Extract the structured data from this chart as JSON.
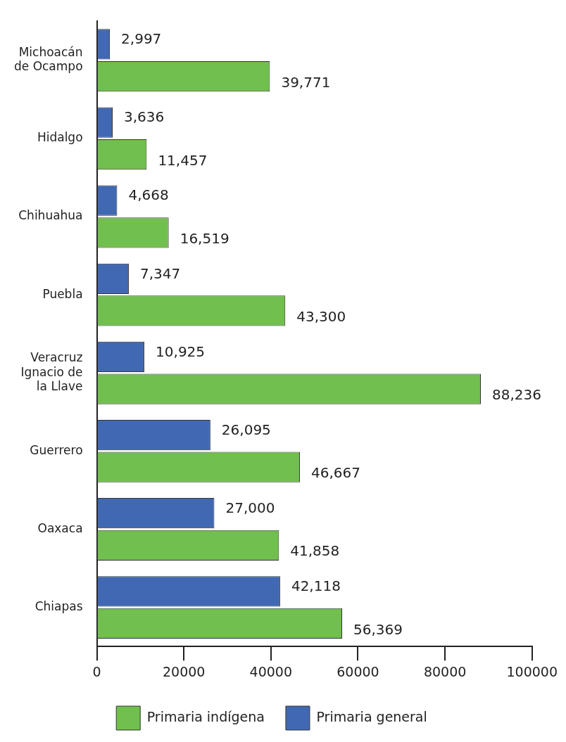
{
  "chart_data": {
    "type": "bar",
    "orientation": "horizontal",
    "categories": [
      "Michoacán de Ocampo",
      "Hidalgo",
      "Chihuahua",
      "Puebla",
      "Veracruz Ignacio de la Llave",
      "Guerrero",
      "Oaxaca",
      "Chiapas"
    ],
    "series": [
      {
        "name": "Primaria general",
        "color": "#4169b3",
        "values": [
          2997,
          3636,
          4668,
          7347,
          10925,
          26095,
          27000,
          42118
        ],
        "value_labels": [
          "2,997",
          "3,636",
          "4,668",
          "7,347",
          "10,925",
          "26,095",
          "27,000",
          "42,118"
        ]
      },
      {
        "name": "Primaria indígena",
        "color": "#71bf4e",
        "values": [
          39771,
          11457,
          16519,
          43300,
          88236,
          46667,
          41858,
          56369
        ],
        "value_labels": [
          "39,771",
          "11,457",
          "16,519",
          "43,300",
          "88,236",
          "46,667",
          "41,858",
          "56,369"
        ]
      }
    ],
    "xlim": [
      0,
      100000
    ],
    "xticks": [
      0,
      20000,
      40000,
      60000,
      80000,
      100000
    ],
    "grid": false,
    "legend": "bottom"
  }
}
